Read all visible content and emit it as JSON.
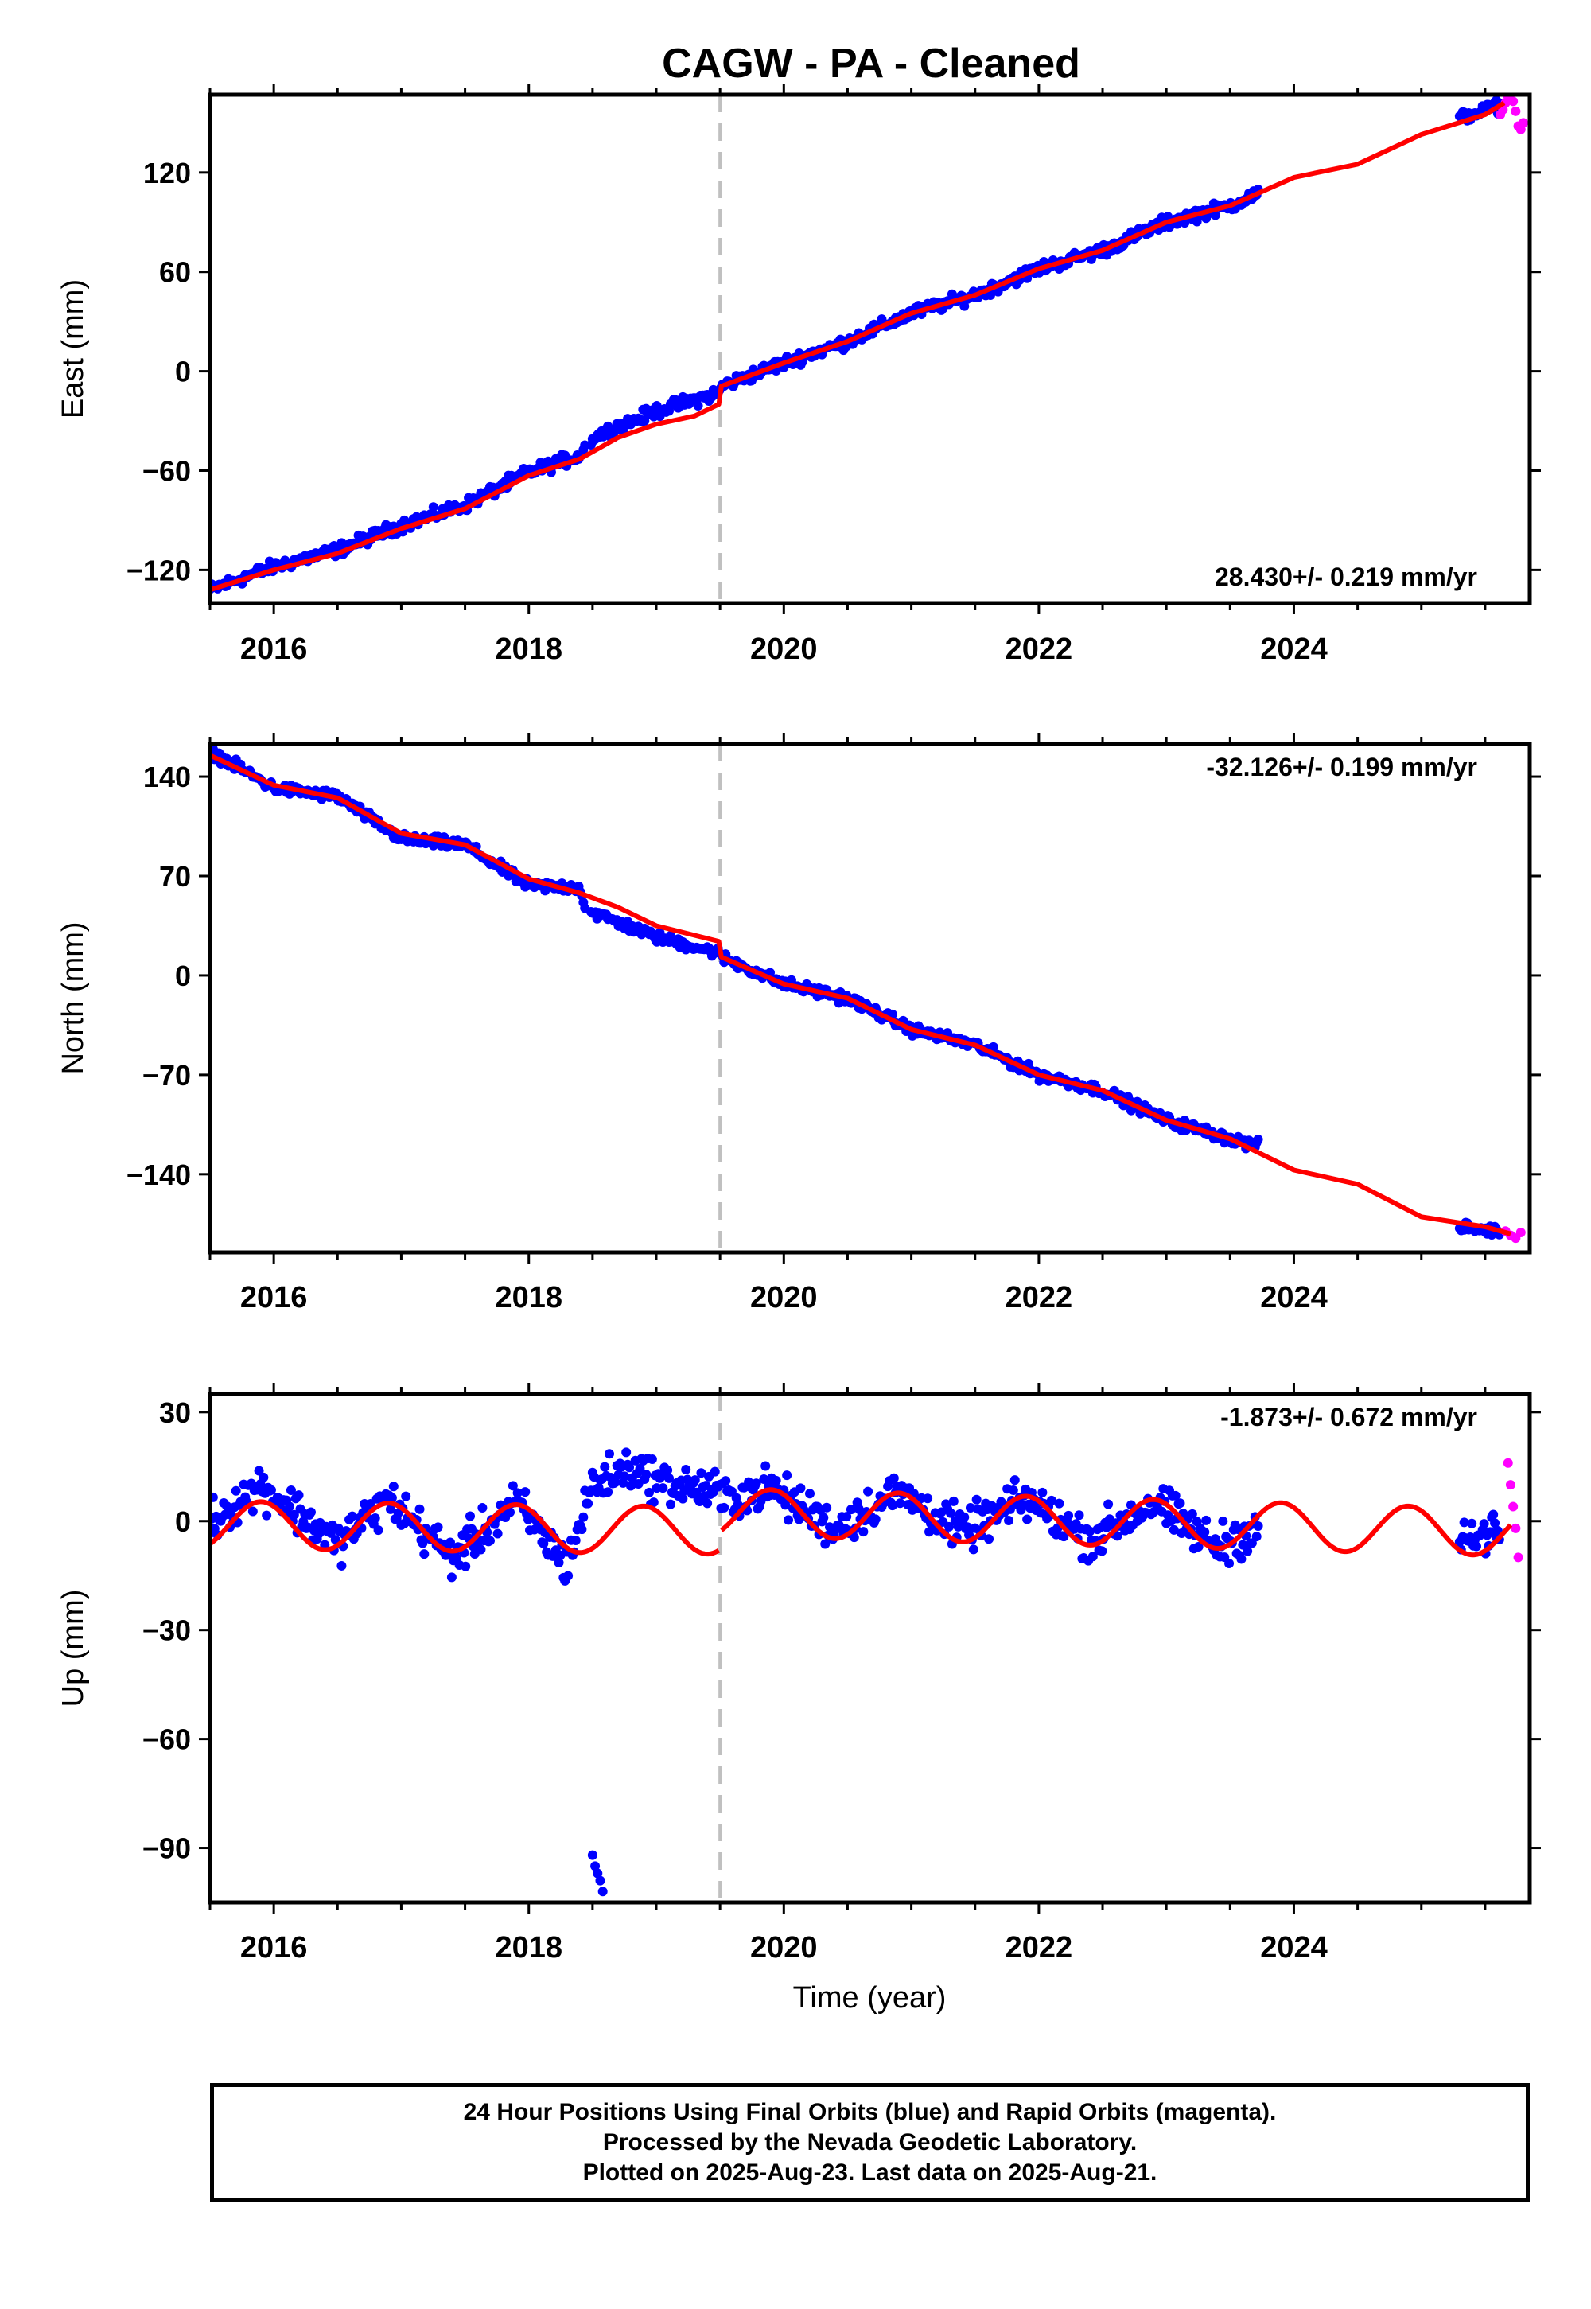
{
  "chart_data": {
    "type": "scatter",
    "title": "CAGW  - PA - Cleaned",
    "xlabel": "Time (year)",
    "x_ticks": [
      "2016",
      "2018",
      "2020",
      "2022",
      "2024"
    ],
    "xlim": [
      2015.5,
      2025.85
    ],
    "event_line_year": 2019.5,
    "colors": {
      "final": "#0000ff",
      "rapid": "#ff00ff",
      "model": "#ff0000",
      "event": "#c0c0c0"
    },
    "panels": [
      {
        "id": "east",
        "ylabel": "East (mm)",
        "ylim": [
          -140,
          167
        ],
        "y_ticks": [
          -120,
          -60,
          0,
          60,
          120
        ],
        "y_tick_labels": [
          "−120",
          "−60",
          "0",
          "60",
          "120"
        ],
        "rate_label": "28.430+/- 0.219 mm/yr",
        "rate_position": "bottom-right",
        "model": [
          [
            2015.5,
            -132
          ],
          [
            2016.0,
            -120
          ],
          [
            2016.5,
            -110
          ],
          [
            2017.0,
            -95
          ],
          [
            2017.5,
            -83
          ],
          [
            2018.0,
            -63
          ],
          [
            2018.4,
            -53
          ],
          [
            2018.7,
            -40
          ],
          [
            2019.0,
            -32
          ],
          [
            2019.3,
            -27
          ],
          [
            2019.49,
            -20
          ],
          [
            2019.51,
            -9
          ],
          [
            2020.0,
            5
          ],
          [
            2020.5,
            18
          ],
          [
            2021.0,
            35
          ],
          [
            2021.5,
            46
          ],
          [
            2022.0,
            62
          ],
          [
            2022.5,
            73
          ],
          [
            2023.0,
            90
          ],
          [
            2023.5,
            100
          ],
          [
            2024.0,
            117
          ],
          [
            2024.5,
            125
          ],
          [
            2025.0,
            143
          ],
          [
            2025.5,
            155
          ],
          [
            2025.65,
            162
          ]
        ],
        "final_data": [
          [
            2015.5,
            -132
          ],
          [
            2016.0,
            -118
          ],
          [
            2016.5,
            -108
          ],
          [
            2017.0,
            -93
          ],
          [
            2017.5,
            -81
          ],
          [
            2018.0,
            -61
          ],
          [
            2018.4,
            -51
          ],
          [
            2018.5,
            -40
          ],
          [
            2019.0,
            -24
          ],
          [
            2019.49,
            -13
          ],
          [
            2019.51,
            -9
          ],
          [
            2020.0,
            5
          ],
          [
            2020.5,
            18
          ],
          [
            2021.0,
            35
          ],
          [
            2021.5,
            46
          ],
          [
            2022.0,
            62
          ],
          [
            2022.5,
            73
          ],
          [
            2023.0,
            90
          ],
          [
            2023.5,
            100
          ],
          [
            2023.7,
            107
          ]
        ],
        "final_data_2025": [
          [
            2025.3,
            153
          ],
          [
            2025.6,
            160
          ]
        ],
        "rapid_data": [
          [
            2025.62,
            155
          ],
          [
            2025.64,
            158
          ],
          [
            2025.66,
            162
          ],
          [
            2025.68,
            166
          ],
          [
            2025.7,
            168
          ],
          [
            2025.72,
            163
          ],
          [
            2025.74,
            157
          ],
          [
            2025.76,
            148
          ],
          [
            2025.78,
            146
          ],
          [
            2025.8,
            150
          ]
        ]
      },
      {
        "id": "north",
        "ylabel": "North (mm)",
        "ylim": [
          -195,
          163
        ],
        "y_ticks": [
          -140,
          -70,
          0,
          70,
          140
        ],
        "y_tick_labels": [
          "−140",
          "−70",
          "0",
          "70",
          "140"
        ],
        "rate_label": "-32.126+/- 0.199 mm/yr",
        "rate_position": "top-right",
        "model": [
          [
            2015.5,
            155
          ],
          [
            2016.0,
            134
          ],
          [
            2016.5,
            125
          ],
          [
            2017.0,
            100
          ],
          [
            2017.5,
            92
          ],
          [
            2018.0,
            68
          ],
          [
            2018.4,
            58
          ],
          [
            2018.7,
            48
          ],
          [
            2019.0,
            35
          ],
          [
            2019.49,
            24
          ],
          [
            2019.51,
            13
          ],
          [
            2020.0,
            -6
          ],
          [
            2020.5,
            -16
          ],
          [
            2021.0,
            -38
          ],
          [
            2021.5,
            -49
          ],
          [
            2022.0,
            -70
          ],
          [
            2022.5,
            -81
          ],
          [
            2023.0,
            -102
          ],
          [
            2023.5,
            -115
          ],
          [
            2024.0,
            -137
          ],
          [
            2024.5,
            -147
          ],
          [
            2025.0,
            -170
          ],
          [
            2025.5,
            -177
          ],
          [
            2025.7,
            -182
          ]
        ],
        "final_data": [
          [
            2015.5,
            158
          ],
          [
            2016.0,
            132
          ],
          [
            2016.5,
            126
          ],
          [
            2017.0,
            96
          ],
          [
            2017.5,
            92
          ],
          [
            2018.0,
            63
          ],
          [
            2018.4,
            62
          ],
          [
            2018.45,
            46
          ],
          [
            2019.0,
            27
          ],
          [
            2019.49,
            16
          ],
          [
            2019.51,
            13
          ],
          [
            2020.0,
            -6
          ],
          [
            2020.5,
            -16
          ],
          [
            2021.0,
            -38
          ],
          [
            2021.5,
            -49
          ],
          [
            2022.0,
            -70
          ],
          [
            2022.5,
            -81
          ],
          [
            2023.0,
            -102
          ],
          [
            2023.5,
            -115
          ],
          [
            2023.7,
            -120
          ]
        ],
        "final_data_2025": [
          [
            2025.3,
            -177
          ],
          [
            2025.6,
            -180
          ]
        ],
        "rapid_data": [
          [
            2025.66,
            -180
          ],
          [
            2025.7,
            -183
          ],
          [
            2025.74,
            -185
          ],
          [
            2025.78,
            -181
          ]
        ]
      },
      {
        "id": "up",
        "ylabel": "Up (mm)",
        "ylim": [
          -105,
          35
        ],
        "y_ticks": [
          -90,
          -60,
          -30,
          0,
          30
        ],
        "y_tick_labels": [
          "−90",
          "−60",
          "−30",
          "0",
          "30"
        ],
        "rate_label": "-1.873+/- 0.672 mm/yr",
        "rate_position": "top-right",
        "model": "annual sinusoid, amplitude ~6 mm, with offset at 2019.5",
        "outliers": [
          [
            2018.5,
            -92
          ],
          [
            2018.52,
            -95
          ],
          [
            2018.54,
            -97
          ],
          [
            2018.56,
            -99
          ],
          [
            2018.58,
            -102
          ]
        ],
        "final_data": [
          [
            2015.5,
            0
          ],
          [
            2015.9,
            10
          ],
          [
            2016.5,
            -6
          ],
          [
            2016.9,
            6
          ],
          [
            2017.4,
            -10
          ],
          [
            2017.9,
            5
          ],
          [
            2018.3,
            -12
          ],
          [
            2018.5,
            10
          ],
          [
            2018.8,
            15
          ],
          [
            2019.0,
            11
          ],
          [
            2019.49,
            8
          ],
          [
            2019.51,
            6
          ],
          [
            2019.9,
            9
          ],
          [
            2020.4,
            -2
          ],
          [
            2020.9,
            8
          ],
          [
            2021.4,
            -3
          ],
          [
            2021.9,
            6
          ],
          [
            2022.4,
            -5
          ],
          [
            2022.9,
            5
          ],
          [
            2023.4,
            -7
          ],
          [
            2023.7,
            -2
          ]
        ],
        "final_data_2025": [
          [
            2025.3,
            -6
          ],
          [
            2025.6,
            -3
          ]
        ],
        "rapid_data": [
          [
            2025.68,
            16
          ],
          [
            2025.7,
            10
          ],
          [
            2025.72,
            4
          ],
          [
            2025.74,
            -2
          ],
          [
            2025.76,
            -10
          ]
        ]
      }
    ]
  },
  "caption": {
    "line1": "24 Hour Positions Using Final Orbits (blue) and Rapid Orbits (magenta).",
    "line2": "Processed by the Nevada Geodetic Laboratory.",
    "line3": "Plotted on 2025-Aug-23. Last data on 2025-Aug-21."
  }
}
